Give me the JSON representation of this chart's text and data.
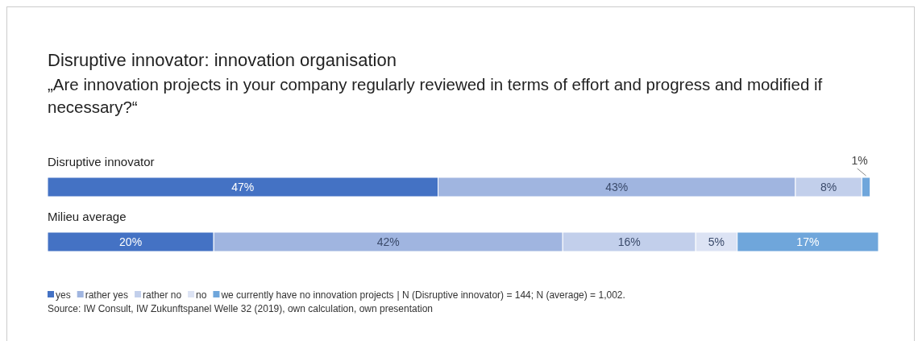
{
  "chart_data": {
    "type": "bar",
    "orientation": "horizontal",
    "stacked": true,
    "title": "Disruptive innovator: innovation organisation",
    "subtitle": "„Are innovation projects in your company regularly reviewed in terms of effort and progress and modified if necessary?“",
    "categories": [
      "Disruptive innovator",
      "Milieu average"
    ],
    "xlim": [
      0,
      100
    ],
    "legend": "bottom left",
    "series": [
      {
        "name": "yes",
        "color": "#4472c4",
        "values": [
          47,
          20
        ],
        "value_labels": [
          "47%",
          "20%"
        ]
      },
      {
        "name": "rather yes",
        "color": "#a0b5e0",
        "values": [
          43,
          42
        ],
        "value_labels": [
          "43%",
          "42%"
        ]
      },
      {
        "name": "rather no",
        "color": "#c2cfeb",
        "values": [
          8,
          16
        ],
        "value_labels": [
          "8%",
          "16%"
        ]
      },
      {
        "name": "no",
        "color": "#dce3f4",
        "values": [
          null,
          5
        ],
        "value_labels": [
          null,
          "5%"
        ]
      },
      {
        "name": "we currently have no innovation projects",
        "color": "#6fa6db",
        "values": [
          1,
          17
        ],
        "value_labels": [
          "1%",
          "17%"
        ]
      }
    ],
    "annotations": [
      "| N (Disruptive innovator) = 144; N (average) = 1,002.",
      "Source: IW Consult, IW Zukunftspanel Welle 32 (2019), own calculation, own presentation"
    ]
  }
}
